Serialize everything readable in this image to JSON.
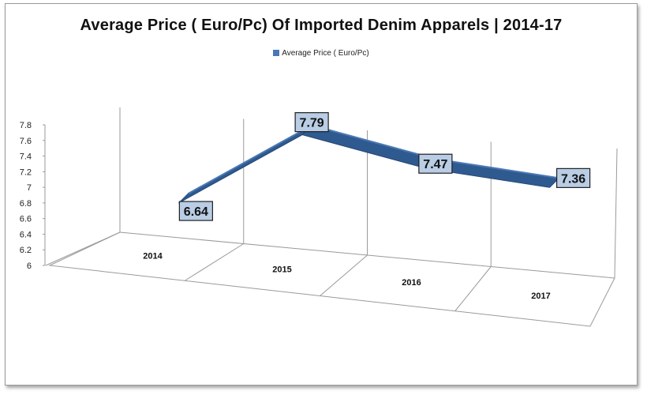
{
  "chart_data": {
    "type": "line",
    "title": "Average Price ( Euro/Pc) Of Imported Denim Apparels | 2014-17",
    "categories": [
      "2014",
      "2015",
      "2016",
      "2017"
    ],
    "series": [
      {
        "name": "Average Price ( Euro/Pc)",
        "values": [
          6.64,
          7.79,
          7.47,
          7.36
        ]
      }
    ],
    "data_labels": [
      "6.64",
      "7.79",
      "7.47",
      "7.36"
    ],
    "y_ticks": [
      "6",
      "6.2",
      "6.4",
      "6.6",
      "6.8",
      "7",
      "7.2",
      "7.4",
      "7.6",
      "7.8"
    ],
    "ylim": [
      6,
      7.8
    ],
    "grid": true,
    "legend": "top",
    "three_d": true,
    "colors": {
      "series": "#2f5a8f",
      "series_light": "#4a78b5",
      "label_fill": "#b9cde5",
      "label_border": "#1f1f1f"
    }
  }
}
